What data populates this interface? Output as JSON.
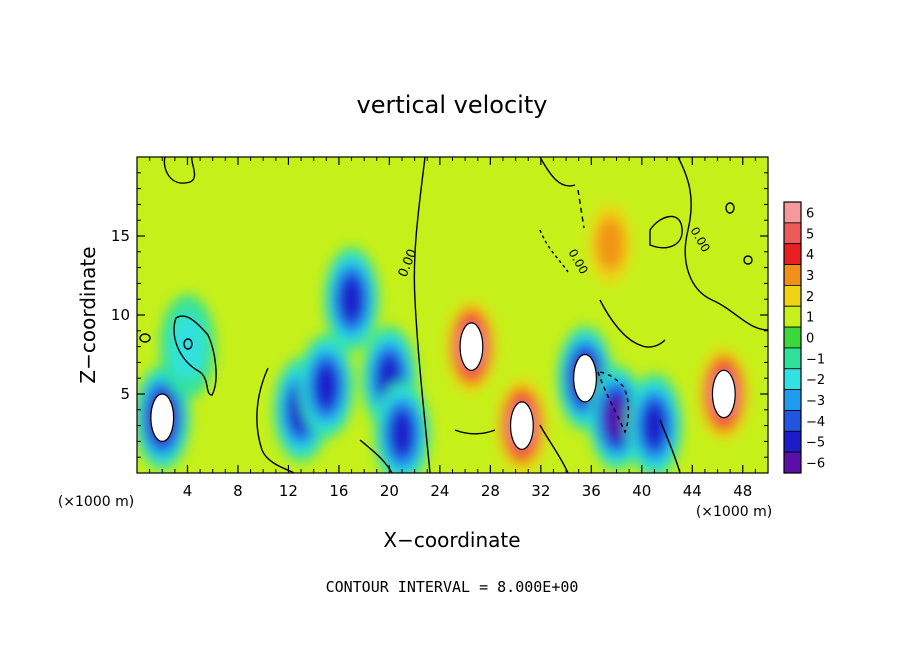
{
  "chart_data": {
    "type": "heatmap",
    "title": "vertical velocity",
    "xlabel": "X−coordinate",
    "ylabel": "Z−coordinate",
    "x_unit_left": "(×1000 m)",
    "x_unit_right": "(×1000 m)",
    "footer": "CONTOUR INTERVAL = 8.000E+00",
    "xlim": [
      0,
      50
    ],
    "ylim": [
      0,
      20
    ],
    "x_ticks": [
      4,
      8,
      12,
      16,
      20,
      24,
      28,
      32,
      36,
      40,
      44,
      48
    ],
    "x_tick_labels": [
      "4",
      "8",
      "12",
      "16",
      "20",
      "24",
      "28",
      "32",
      "36",
      "40",
      "44",
      "48"
    ],
    "y_ticks": [
      5,
      10,
      15
    ],
    "y_tick_labels": [
      "5",
      "10",
      "15"
    ],
    "contour_label": "0.00",
    "colorbar": {
      "levels": [
        6,
        5,
        4,
        3,
        2,
        1,
        0,
        -1,
        -2,
        -3,
        -4,
        -5,
        -6
      ],
      "labels": [
        "6",
        "5",
        "4",
        "3",
        "2",
        "1",
        "0",
        "−1",
        "−2",
        "−3",
        "−4",
        "−5",
        "−6"
      ],
      "colors": [
        "#f49a9a",
        "#ee5a5a",
        "#ea1f1f",
        "#f09018",
        "#f2d214",
        "#c6f01a",
        "#3ad83a",
        "#2ee29c",
        "#30e2e2",
        "#1e9cf0",
        "#2255e2",
        "#1c1cc8",
        "#5a10a8"
      ]
    },
    "background_value": 0.5,
    "features": [
      {
        "sign": "negative",
        "x": 2.0,
        "z": 3.5,
        "peak": -6,
        "core": "saturated"
      },
      {
        "sign": "negative",
        "x": 4.0,
        "z": 8.0,
        "peak": -2
      },
      {
        "sign": "negative",
        "x": 13.0,
        "z": 4.0,
        "peak": -5
      },
      {
        "sign": "negative",
        "x": 15.0,
        "z": 5.5,
        "peak": -5
      },
      {
        "sign": "negative",
        "x": 17.0,
        "z": 11.0,
        "peak": -5
      },
      {
        "sign": "negative",
        "x": 20.0,
        "z": 6.0,
        "peak": -5
      },
      {
        "sign": "negative",
        "x": 21.0,
        "z": 2.5,
        "peak": -5
      },
      {
        "sign": "positive",
        "x": 26.5,
        "z": 8.0,
        "peak": 6,
        "core": "saturated"
      },
      {
        "sign": "positive",
        "x": 30.5,
        "z": 3.0,
        "peak": 6,
        "core": "saturated"
      },
      {
        "sign": "negative",
        "x": 35.5,
        "z": 6.0,
        "peak": -6,
        "core": "saturated"
      },
      {
        "sign": "negative",
        "x": 38.0,
        "z": 3.5,
        "peak": -6
      },
      {
        "sign": "positive",
        "x": 37.5,
        "z": 14.5,
        "peak": 3
      },
      {
        "sign": "negative",
        "x": 41.0,
        "z": 3.0,
        "peak": -5
      },
      {
        "sign": "positive",
        "x": 46.5,
        "z": 5.0,
        "peak": 6,
        "core": "saturated"
      }
    ]
  }
}
